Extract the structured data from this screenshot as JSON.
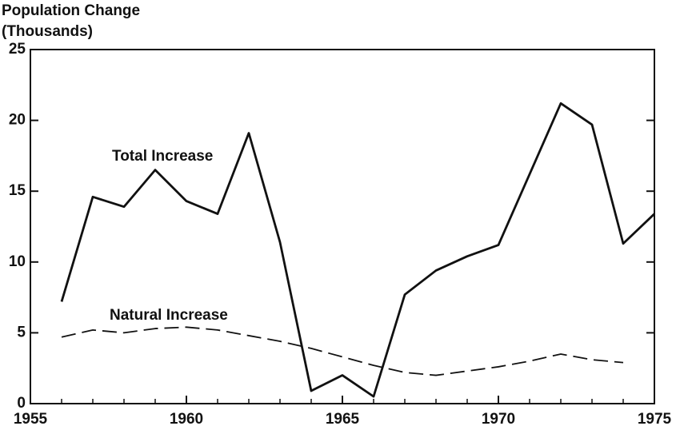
{
  "chart_data": {
    "type": "line",
    "ylabel_lines": [
      "Population Change",
      "(Thousands)"
    ],
    "x": [
      1956,
      1957,
      1958,
      1959,
      1960,
      1961,
      1962,
      1963,
      1964,
      1965,
      1966,
      1967,
      1968,
      1969,
      1970,
      1971,
      1972,
      1973,
      1974,
      1975
    ],
    "series": [
      {
        "name": "Total Increase",
        "color": "#111111",
        "dash": "solid",
        "values": [
          7.2,
          14.6,
          13.9,
          16.5,
          14.3,
          13.4,
          19.1,
          11.4,
          0.9,
          2.0,
          0.5,
          7.7,
          9.4,
          10.4,
          11.2,
          16.2,
          21.2,
          19.7,
          11.3,
          13.4
        ]
      },
      {
        "name": "Natural Increase",
        "color": "#111111",
        "dash": "dashed",
        "values": [
          4.7,
          5.2,
          5.0,
          5.3,
          5.4,
          5.2,
          4.8,
          4.4,
          3.9,
          3.3,
          2.7,
          2.2,
          2.0,
          2.3,
          2.6,
          3.0,
          3.5,
          3.1,
          2.9,
          null
        ]
      }
    ],
    "xlim": [
      1955,
      1975
    ],
    "xticks": [
      1955,
      1960,
      1965,
      1970,
      1975
    ],
    "ylim": [
      0,
      25
    ],
    "yticks": [
      0,
      5,
      10,
      15,
      20,
      25
    ],
    "grid": false
  }
}
